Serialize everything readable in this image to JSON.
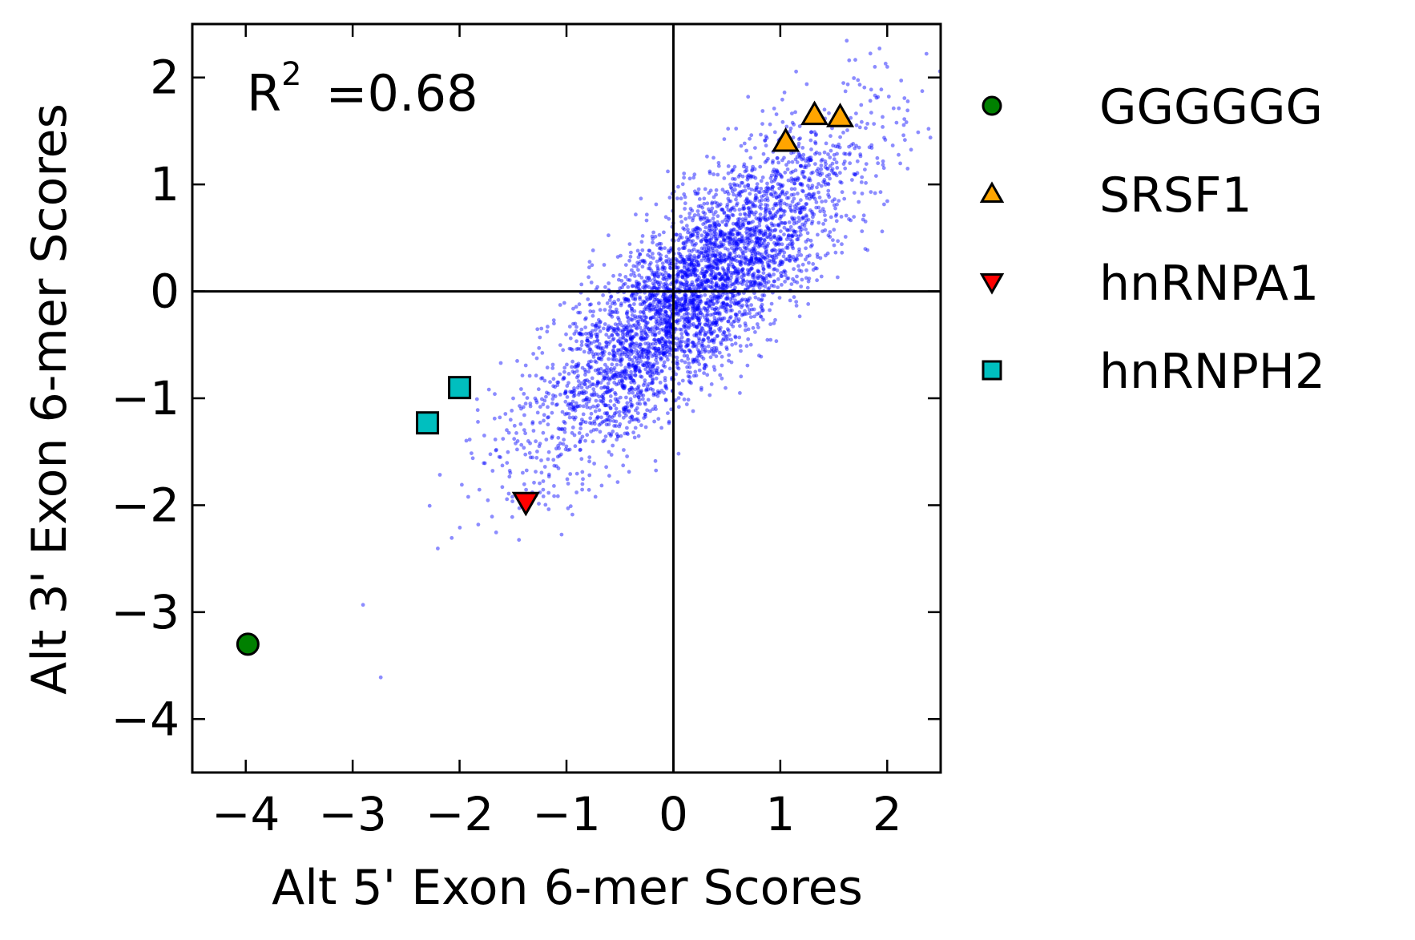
{
  "chart_data": {
    "type": "scatter",
    "title": "",
    "xlabel": "Alt 5' Exon 6-mer Scores",
    "ylabel": "Alt 3' Exon 6-mer Scores",
    "xlim": [
      -4.5,
      2.5
    ],
    "ylim": [
      -4.5,
      2.5
    ],
    "x_ticks": [
      -4,
      -3,
      -2,
      -1,
      0,
      1,
      2
    ],
    "y_ticks": [
      -4,
      -3,
      -2,
      -1,
      0,
      1,
      2
    ],
    "x_tick_labels": [
      "−4",
      "−3",
      "−2",
      "−1",
      "0",
      "1",
      "2"
    ],
    "y_tick_labels": [
      "−4",
      "−3",
      "−2",
      "−1",
      "0",
      "1",
      "2"
    ],
    "grid": false,
    "reference_lines": {
      "x": 0,
      "y": 0
    },
    "legend_position": "outside right",
    "annotation": {
      "r2_label": "R",
      "r2_exp": "2",
      "r2_value": "=0.68"
    },
    "background_cloud": {
      "description_color": "#0000ff",
      "n_points": 4096,
      "correlation_r2": 0.68,
      "x_mean": 0.2,
      "x_sd": 0.75,
      "y_mean": 0.0,
      "y_sd": 0.75
    },
    "series": [
      {
        "name": "GGGGGG",
        "marker": "circle",
        "color": "#008000",
        "points": [
          [
            -3.98,
            -3.3
          ]
        ]
      },
      {
        "name": "SRSF1",
        "marker": "triangle-up",
        "color": "#ffa500",
        "points": [
          [
            1.05,
            1.4
          ],
          [
            1.32,
            1.65
          ],
          [
            1.56,
            1.63
          ]
        ]
      },
      {
        "name": "hnRNPA1",
        "marker": "triangle-down",
        "color": "#ff0000",
        "points": [
          [
            -1.38,
            -1.97
          ]
        ]
      },
      {
        "name": "hnRNPH2",
        "marker": "square",
        "color": "#00bfbf",
        "points": [
          [
            -2.3,
            -1.23
          ],
          [
            -2.0,
            -0.9
          ]
        ]
      }
    ]
  }
}
